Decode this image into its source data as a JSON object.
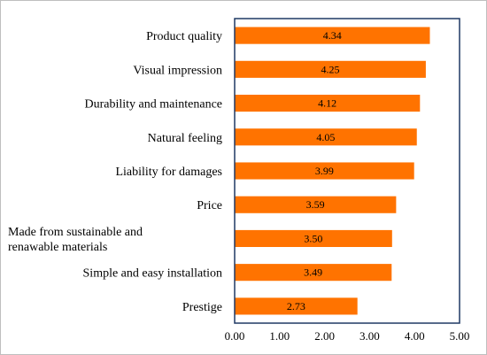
{
  "chart_data": {
    "type": "bar",
    "orientation": "horizontal",
    "categories": [
      "Product quality",
      "Visual impression",
      "Durability and maintenance",
      "Natural feeling",
      "Liability for damages",
      "Price",
      "Made from sustainable and renawable materials",
      "Simple and easy installation",
      "Prestige"
    ],
    "values": [
      4.34,
      4.25,
      4.12,
      4.05,
      3.99,
      3.59,
      3.5,
      3.49,
      2.73
    ],
    "data_labels": [
      "4.34",
      "4.25",
      "4.12",
      "4.05",
      "3.99",
      "3.59",
      "3.50",
      "3.49",
      "2.73"
    ],
    "xlim": [
      0,
      5
    ],
    "x_ticks": [
      "0.00",
      "1.00",
      "2.00",
      "3.00",
      "4.00",
      "5.00"
    ],
    "title": "",
    "xlabel": "",
    "ylabel": "",
    "grid": false,
    "legend": "none",
    "colors": {
      "bar": "#ff7300",
      "plot_border": "#1f3864",
      "frame": "#bfbfbf"
    }
  }
}
